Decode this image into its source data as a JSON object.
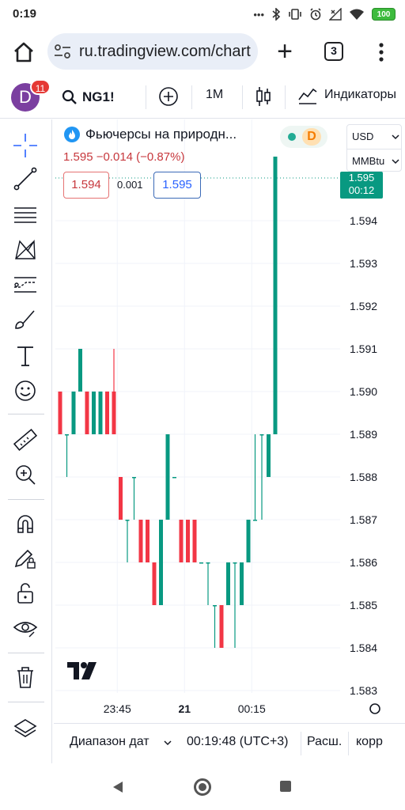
{
  "status_bar": {
    "time": "0:19",
    "battery": "100",
    "icons": [
      "dots-icon",
      "bluetooth-icon",
      "vibrate-icon",
      "alarm-icon",
      "no-signal-icon",
      "wifi-icon",
      "battery-icon"
    ]
  },
  "browser": {
    "url": "ru.tradingview.com/chart",
    "tab_count": "3"
  },
  "toolbar": {
    "avatar_letter": "D",
    "notification_count": "11",
    "symbol": "NG1!",
    "interval": "1M",
    "indicators_label": "Индикаторы"
  },
  "legend": {
    "title": "Фьючерсы на природн...",
    "price_line": "1.595  −0.014 (−0.87%)",
    "status_letter": "D",
    "sell_price": "1.594",
    "spread": "0.001",
    "buy_price": "1.595",
    "currency": "USD",
    "unit": "MMBtu"
  },
  "chart_data": {
    "type": "candlestick",
    "ylim": [
      1.583,
      1.5955
    ],
    "y_ticks": [
      "1.594",
      "1.593",
      "1.592",
      "1.591",
      "1.590",
      "1.589",
      "1.588",
      "1.587",
      "1.586",
      "1.585",
      "1.584",
      "1.583"
    ],
    "x_ticks": [
      {
        "label": "23:45",
        "index": 8.5
      },
      {
        "label": "21",
        "index": 18.5
      },
      {
        "label": "00:15",
        "index": 28.5
      }
    ],
    "last_price": "1.595",
    "countdown": "00:12",
    "up_color": "#089981",
    "down_color": "#f23645",
    "candles": [
      {
        "o": 1.59,
        "h": 1.59,
        "l": 1.589,
        "c": 1.589
      },
      {
        "o": 1.589,
        "h": 1.589,
        "l": 1.588,
        "c": 1.589
      },
      {
        "o": 1.589,
        "h": 1.59,
        "l": 1.589,
        "c": 1.59
      },
      {
        "o": 1.59,
        "h": 1.591,
        "l": 1.59,
        "c": 1.591
      },
      {
        "o": 1.59,
        "h": 1.59,
        "l": 1.589,
        "c": 1.589
      },
      {
        "o": 1.589,
        "h": 1.59,
        "l": 1.589,
        "c": 1.59
      },
      {
        "o": 1.589,
        "h": 1.59,
        "l": 1.589,
        "c": 1.59
      },
      {
        "o": 1.59,
        "h": 1.59,
        "l": 1.589,
        "c": 1.589
      },
      {
        "o": 1.59,
        "h": 1.591,
        "l": 1.589,
        "c": 1.589
      },
      {
        "o": 1.588,
        "h": 1.588,
        "l": 1.587,
        "c": 1.587
      },
      {
        "o": 1.587,
        "h": 1.587,
        "l": 1.586,
        "c": 1.587
      },
      {
        "o": 1.588,
        "h": 1.588,
        "l": 1.587,
        "c": 1.588
      },
      {
        "o": 1.587,
        "h": 1.587,
        "l": 1.586,
        "c": 1.586
      },
      {
        "o": 1.587,
        "h": 1.587,
        "l": 1.586,
        "c": 1.586
      },
      {
        "o": 1.586,
        "h": 1.586,
        "l": 1.585,
        "c": 1.585
      },
      {
        "o": 1.585,
        "h": 1.587,
        "l": 1.585,
        "c": 1.587
      },
      {
        "o": 1.587,
        "h": 1.589,
        "l": 1.587,
        "c": 1.589
      },
      {
        "o": 1.588,
        "h": 1.588,
        "l": 1.588,
        "c": 1.588
      },
      {
        "o": 1.587,
        "h": 1.587,
        "l": 1.586,
        "c": 1.586
      },
      {
        "o": 1.587,
        "h": 1.587,
        "l": 1.586,
        "c": 1.586
      },
      {
        "o": 1.587,
        "h": 1.587,
        "l": 1.586,
        "c": 1.586
      },
      {
        "o": 1.586,
        "h": 1.586,
        "l": 1.586,
        "c": 1.586
      },
      {
        "o": 1.586,
        "h": 1.586,
        "l": 1.585,
        "c": 1.586
      },
      {
        "o": 1.585,
        "h": 1.585,
        "l": 1.584,
        "c": 1.585
      },
      {
        "o": 1.585,
        "h": 1.585,
        "l": 1.584,
        "c": 1.584
      },
      {
        "o": 1.585,
        "h": 1.586,
        "l": 1.585,
        "c": 1.586
      },
      {
        "o": 1.586,
        "h": 1.586,
        "l": 1.584,
        "c": 1.586
      },
      {
        "o": 1.585,
        "h": 1.586,
        "l": 1.585,
        "c": 1.586
      },
      {
        "o": 1.586,
        "h": 1.587,
        "l": 1.586,
        "c": 1.587
      },
      {
        "o": 1.587,
        "h": 1.589,
        "l": 1.587,
        "c": 1.587
      },
      {
        "o": 1.589,
        "h": 1.589,
        "l": 1.587,
        "c": 1.589
      },
      {
        "o": 1.588,
        "h": 1.589,
        "l": 1.588,
        "c": 1.589
      },
      {
        "o": 1.589,
        "h": 1.5955,
        "l": 1.589,
        "c": 1.5955
      }
    ]
  },
  "bottom_bar": {
    "date_range": "Диапазон дат",
    "time": "00:19:48 (UTC+3)",
    "scale": "Расш.",
    "corr": "корр"
  }
}
